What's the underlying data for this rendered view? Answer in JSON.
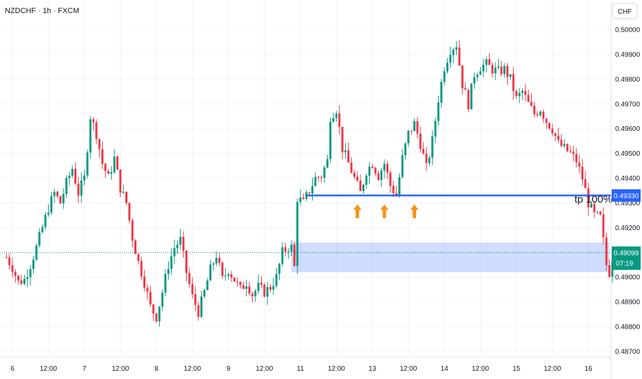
{
  "header": {
    "symbol_label": "NZDCHF · 1h · FXCM",
    "currency_button": "CHF"
  },
  "chart_data": {
    "type": "candlestick",
    "title": "NZDCHF · 1h · FXCM",
    "currency": "CHF",
    "y_ticks": [
      "0.50000",
      "0.49900",
      "0.49800",
      "0.49700",
      "0.49600",
      "0.49500",
      "0.49400",
      "0.49300",
      "0.49200",
      "0.49100",
      "0.49000",
      "0.48900",
      "0.48800",
      "0.48700"
    ],
    "y_tick_values": [
      0.5,
      0.499,
      0.498,
      0.497,
      0.496,
      0.495,
      0.494,
      0.493,
      0.492,
      0.491,
      0.49,
      0.489,
      0.488,
      0.487
    ],
    "ylim": [
      0.4866,
      0.50055
    ],
    "x_ticks": [
      {
        "label": "6",
        "bar": 0
      },
      {
        "label": "12:00",
        "bar": 12
      },
      {
        "label": "7",
        "bar": 24
      },
      {
        "label": "12:00",
        "bar": 36
      },
      {
        "label": "8",
        "bar": 48
      },
      {
        "label": "12:00",
        "bar": 60
      },
      {
        "label": "9",
        "bar": 72
      },
      {
        "label": "12:00",
        "bar": 84
      },
      {
        "label": "11",
        "bar": 96
      },
      {
        "label": "12:00",
        "bar": 108
      },
      {
        "label": "13",
        "bar": 120
      },
      {
        "label": "12:00",
        "bar": 132
      },
      {
        "label": "14",
        "bar": 144
      },
      {
        "label": "12:00",
        "bar": 156
      },
      {
        "label": "15",
        "bar": 168
      },
      {
        "label": "12:00",
        "bar": 180
      },
      {
        "label": "16",
        "bar": 192
      }
    ],
    "bar_start": -2,
    "bar_end": 201,
    "close_path": [
      [
        -2,
        0.4908
      ],
      [
        0,
        0.4904
      ],
      [
        2,
        0.4898
      ],
      [
        4,
        0.4899
      ],
      [
        6,
        0.4905
      ],
      [
        8,
        0.4912
      ],
      [
        10,
        0.492
      ],
      [
        12,
        0.4928
      ],
      [
        14,
        0.4934
      ],
      [
        16,
        0.493
      ],
      [
        18,
        0.4938
      ],
      [
        20,
        0.4944
      ],
      [
        22,
        0.4934
      ],
      [
        24,
        0.494
      ],
      [
        26,
        0.4965
      ],
      [
        28,
        0.4958
      ],
      [
        30,
        0.4946
      ],
      [
        32,
        0.494
      ],
      [
        34,
        0.4948
      ],
      [
        36,
        0.4936
      ],
      [
        38,
        0.493
      ],
      [
        40,
        0.4916
      ],
      [
        42,
        0.4906
      ],
      [
        44,
        0.4898
      ],
      [
        46,
        0.4888
      ],
      [
        48,
        0.4884
      ],
      [
        50,
        0.4894
      ],
      [
        52,
        0.4905
      ],
      [
        54,
        0.4912
      ],
      [
        56,
        0.4915
      ],
      [
        58,
        0.4902
      ],
      [
        60,
        0.4892
      ],
      [
        62,
        0.4886
      ],
      [
        64,
        0.4894
      ],
      [
        66,
        0.4903
      ],
      [
        68,
        0.4909
      ],
      [
        70,
        0.4899
      ],
      [
        72,
        0.4903
      ],
      [
        74,
        0.4899
      ],
      [
        76,
        0.4895
      ],
      [
        78,
        0.4898
      ],
      [
        80,
        0.4893
      ],
      [
        82,
        0.4896
      ],
      [
        84,
        0.4894
      ],
      [
        86,
        0.4896
      ],
      [
        88,
        0.49
      ],
      [
        90,
        0.491
      ],
      [
        92,
        0.4912
      ],
      [
        93,
        0.4912
      ],
      [
        94,
        0.4904
      ],
      [
        95,
        0.4932
      ],
      [
        97,
        0.493
      ],
      [
        99,
        0.4935
      ],
      [
        101,
        0.494
      ],
      [
        103,
        0.4941
      ],
      [
        105,
        0.4947
      ],
      [
        106,
        0.4965
      ],
      [
        108,
        0.4968
      ],
      [
        110,
        0.4952
      ],
      [
        112,
        0.4946
      ],
      [
        114,
        0.494
      ],
      [
        116,
        0.4934
      ],
      [
        118,
        0.4943
      ],
      [
        120,
        0.4946
      ],
      [
        122,
        0.4941
      ],
      [
        124,
        0.4946
      ],
      [
        126,
        0.4937
      ],
      [
        128,
        0.4933
      ],
      [
        130,
        0.4948
      ],
      [
        132,
        0.4958
      ],
      [
        134,
        0.4962
      ],
      [
        136,
        0.4954
      ],
      [
        138,
        0.4944
      ],
      [
        140,
        0.4955
      ],
      [
        142,
        0.4972
      ],
      [
        144,
        0.4985
      ],
      [
        146,
        0.4992
      ],
      [
        148,
        0.4994
      ],
      [
        150,
        0.4978
      ],
      [
        152,
        0.497
      ],
      [
        154,
        0.4982
      ],
      [
        156,
        0.4985
      ],
      [
        158,
        0.4986
      ],
      [
        160,
        0.4984
      ],
      [
        162,
        0.4983
      ],
      [
        164,
        0.4984
      ],
      [
        166,
        0.498
      ],
      [
        168,
        0.4972
      ],
      [
        170,
        0.4975
      ],
      [
        172,
        0.497
      ],
      [
        174,
        0.4966
      ],
      [
        176,
        0.4968
      ],
      [
        178,
        0.4963
      ],
      [
        180,
        0.496
      ],
      [
        182,
        0.4954
      ],
      [
        184,
        0.4952
      ],
      [
        186,
        0.495
      ],
      [
        188,
        0.4947
      ],
      [
        190,
        0.494
      ],
      [
        192,
        0.493
      ],
      [
        194,
        0.4925
      ],
      [
        196,
        0.4924
      ],
      [
        198,
        0.4905
      ],
      [
        199,
        0.4902
      ],
      [
        200,
        0.4908
      ],
      [
        201,
        0.49099
      ]
    ],
    "up_color": "#089981",
    "down_color": "#f23645",
    "current_price": {
      "value": 0.49099,
      "label": "0.49099",
      "countdown": "07:19",
      "color": "#089981"
    },
    "tp_line": {
      "value": 0.4933,
      "label": "tp 100%",
      "price_label": "0.49330",
      "bar_from": 98,
      "bar_to": 205,
      "color": "#2962ff"
    },
    "zone": {
      "bar_from": 93,
      "bar_to": 199,
      "high": 0.4914,
      "low": 0.4902,
      "color": "#2962ff"
    },
    "arrows": {
      "bars": [
        115,
        124,
        134
      ],
      "value": 0.49305,
      "color": "#f7931a"
    },
    "grid": true
  }
}
